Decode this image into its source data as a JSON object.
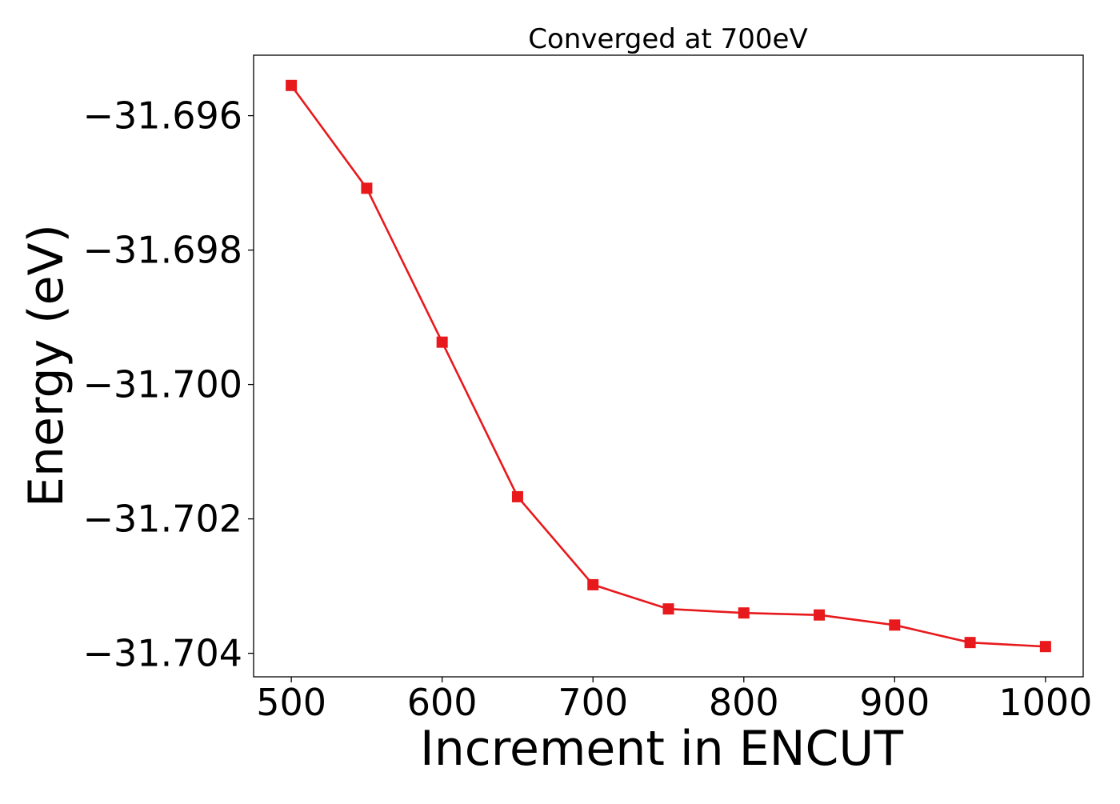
{
  "chart_data": {
    "type": "line",
    "title": "Converged at 700eV",
    "xlabel": "Increment in ENCUT",
    "ylabel": "Energy (eV)",
    "xlim": [
      475,
      1025
    ],
    "ylim": [
      -31.70435,
      -31.6951
    ],
    "xticks": [
      500,
      600,
      700,
      800,
      900,
      1000
    ],
    "yticks": [
      -31.696,
      -31.698,
      -31.7,
      -31.702,
      -31.704
    ],
    "ytick_labels": [
      "−31.696",
      "−31.698",
      "−31.700",
      "−31.702",
      "−31.704"
    ],
    "grid": false,
    "legend": "none",
    "series": [
      {
        "marker": "square",
        "color": "#e8191c",
        "x": [
          500,
          550,
          600,
          650,
          700,
          750,
          800,
          850,
          900,
          950,
          1000
        ],
        "y": [
          -31.69555,
          -31.69708,
          -31.69937,
          -31.70167,
          -31.70298,
          -31.70334,
          -31.7034,
          -31.70343,
          -31.70358,
          -31.70384,
          -31.7039
        ]
      }
    ]
  }
}
